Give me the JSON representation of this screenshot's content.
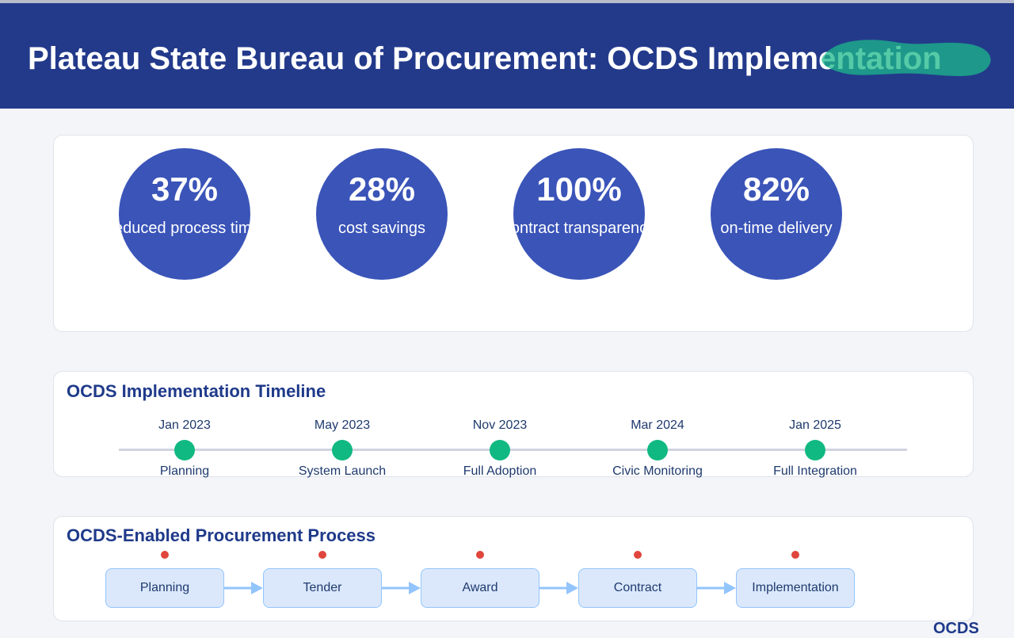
{
  "header": {
    "title": "Plateau State Bureau of Procurement: OCDS Implementation"
  },
  "stats": [
    {
      "value": "37%",
      "label": "reduced process time"
    },
    {
      "value": "28%",
      "label": "cost savings"
    },
    {
      "value": "100%",
      "label": "contract transparency"
    },
    {
      "value": "82%",
      "label": "on-time delivery"
    }
  ],
  "timeline": {
    "title": "OCDS Implementation Timeline",
    "events": [
      {
        "date": "Jan 2023",
        "label": "Planning"
      },
      {
        "date": "May 2023",
        "label": "System Launch"
      },
      {
        "date": "Nov 2023",
        "label": "Full Adoption"
      },
      {
        "date": "Mar 2024",
        "label": "Civic Monitoring"
      },
      {
        "date": "Jan 2025",
        "label": "Full Integration"
      }
    ]
  },
  "process": {
    "title": "OCDS-Enabled Procurement Process",
    "steps": [
      "Planning",
      "Tender",
      "Award",
      "Contract",
      "Implementation"
    ]
  },
  "footer": {
    "text": "OCDS"
  }
}
